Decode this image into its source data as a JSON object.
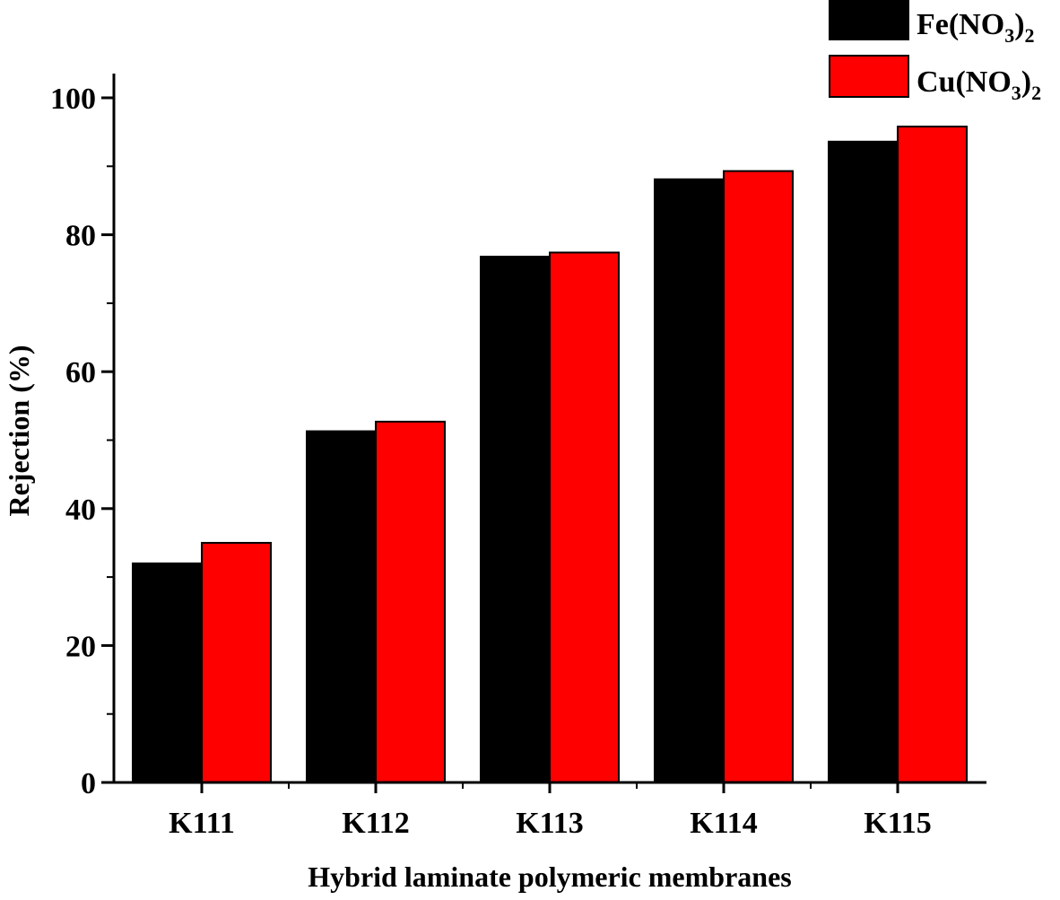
{
  "chart_data": {
    "type": "bar",
    "xlabel": "Hybrid laminate polymeric membranes",
    "ylabel": "Rejection (%)",
    "ylim": [
      0,
      100
    ],
    "yticks": [
      0,
      20,
      40,
      60,
      80,
      100
    ],
    "ytick_labels": [
      "0",
      "20",
      "40",
      "60",
      "80",
      "100"
    ],
    "categories": [
      "K111",
      "K112",
      "K113",
      "K114",
      "K115"
    ],
    "series": [
      {
        "name": "Fe(NO3)2",
        "label_main": "Fe(NO",
        "label_sub1": "3",
        "label_close": ")",
        "label_sub2": "2",
        "color": "#000000",
        "values": [
          32,
          51.3,
          76.8,
          88.1,
          93.6
        ]
      },
      {
        "name": "Cu(NO3)2",
        "label_main": "Cu(NO",
        "label_sub1": "3",
        "label_close": ")",
        "label_sub2": "2",
        "color": "#ff0000",
        "values": [
          35,
          52.7,
          77.4,
          89.3,
          95.8
        ]
      }
    ],
    "legend_position": "top-right",
    "grid": false
  }
}
